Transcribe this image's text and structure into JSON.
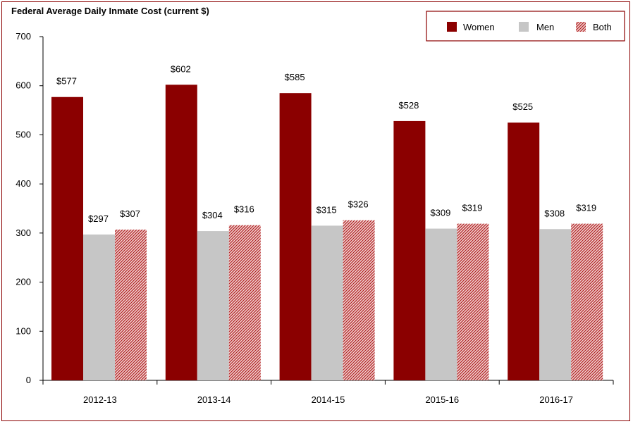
{
  "chart_data": {
    "type": "bar",
    "title": "Federal Average Daily Inmate Cost  (current $)",
    "categories": [
      "2012-13",
      "2013-14",
      "2014-15",
      "2015-16",
      "2016-17"
    ],
    "series": [
      {
        "name": "Women",
        "values": [
          577,
          602,
          585,
          528,
          525
        ],
        "labels": [
          "$577",
          "$602",
          "$585",
          "$528",
          "$525"
        ],
        "color": "#8b0000"
      },
      {
        "name": "Men",
        "values": [
          297,
          304,
          315,
          309,
          308
        ],
        "labels": [
          "$297",
          "$304",
          "$315",
          "$309",
          "$308"
        ],
        "color": "#c6c6c6"
      },
      {
        "name": "Both",
        "values": [
          307,
          316,
          326,
          319,
          319
        ],
        "labels": [
          "$307",
          "$316",
          "$326",
          "$319",
          "$319"
        ],
        "color": "#b22222",
        "pattern": "hatched"
      }
    ],
    "ylim": [
      0,
      700
    ],
    "yticks": [
      0,
      100,
      200,
      300,
      400,
      500,
      600,
      700
    ],
    "xlabel": "",
    "ylabel": "",
    "legend_position": "top-right",
    "grid": false
  }
}
